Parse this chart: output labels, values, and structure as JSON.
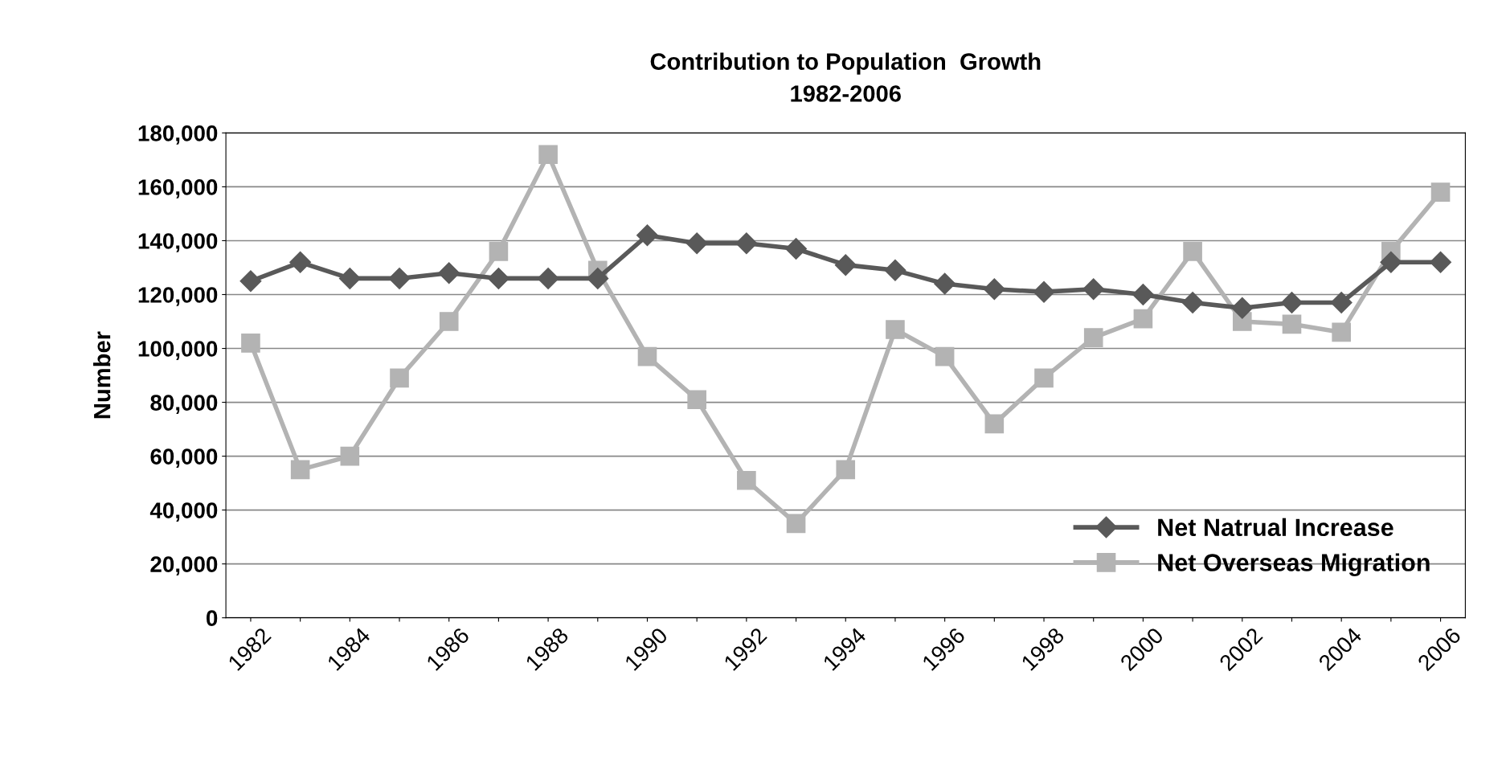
{
  "chart_data": {
    "type": "line",
    "title": "Contribution to Population  Growth\n1982-2006",
    "ylabel": "Number",
    "categories": [
      "1982",
      null,
      "1984",
      null,
      "1986",
      null,
      "1988",
      null,
      "1990",
      null,
      "1992",
      null,
      "1994",
      null,
      "1996",
      null,
      "1998",
      null,
      "2000",
      null,
      "2002",
      null,
      "2004",
      null,
      "2006"
    ],
    "series": [
      {
        "name": "Net Natrual Increase",
        "color": "#595959",
        "marker": "diamond",
        "values": [
          125000,
          132000,
          126000,
          126000,
          128000,
          126000,
          126000,
          126000,
          142000,
          139000,
          139000,
          137000,
          131000,
          129000,
          124000,
          122000,
          121000,
          122000,
          120000,
          117000,
          115000,
          117000,
          117000,
          132000,
          132000
        ]
      },
      {
        "name": "Net Overseas Migration",
        "color": "#b3b3b3",
        "marker": "square",
        "values": [
          102000,
          55000,
          60000,
          89000,
          110000,
          136000,
          172000,
          129000,
          97000,
          81000,
          51000,
          35000,
          55000,
          107000,
          97000,
          72000,
          89000,
          104000,
          111000,
          136000,
          110000,
          109000,
          106000,
          136000,
          158000
        ]
      }
    ],
    "ylim": [
      0,
      180000
    ],
    "yticks": [
      {
        "value": 0,
        "label": "0"
      },
      {
        "value": 20000,
        "label": "20,000"
      },
      {
        "value": 40000,
        "label": "40,000"
      },
      {
        "value": 60000,
        "label": "60,000"
      },
      {
        "value": 80000,
        "label": "80,000"
      },
      {
        "value": 100000,
        "label": "100,000"
      },
      {
        "value": 120000,
        "label": "120,000"
      },
      {
        "value": 140000,
        "label": "140,000"
      },
      {
        "value": 160000,
        "label": "160,000"
      },
      {
        "value": 180000,
        "label": "180,000"
      }
    ],
    "grid": "y",
    "legend": "lower right",
    "line_style": "solid"
  }
}
